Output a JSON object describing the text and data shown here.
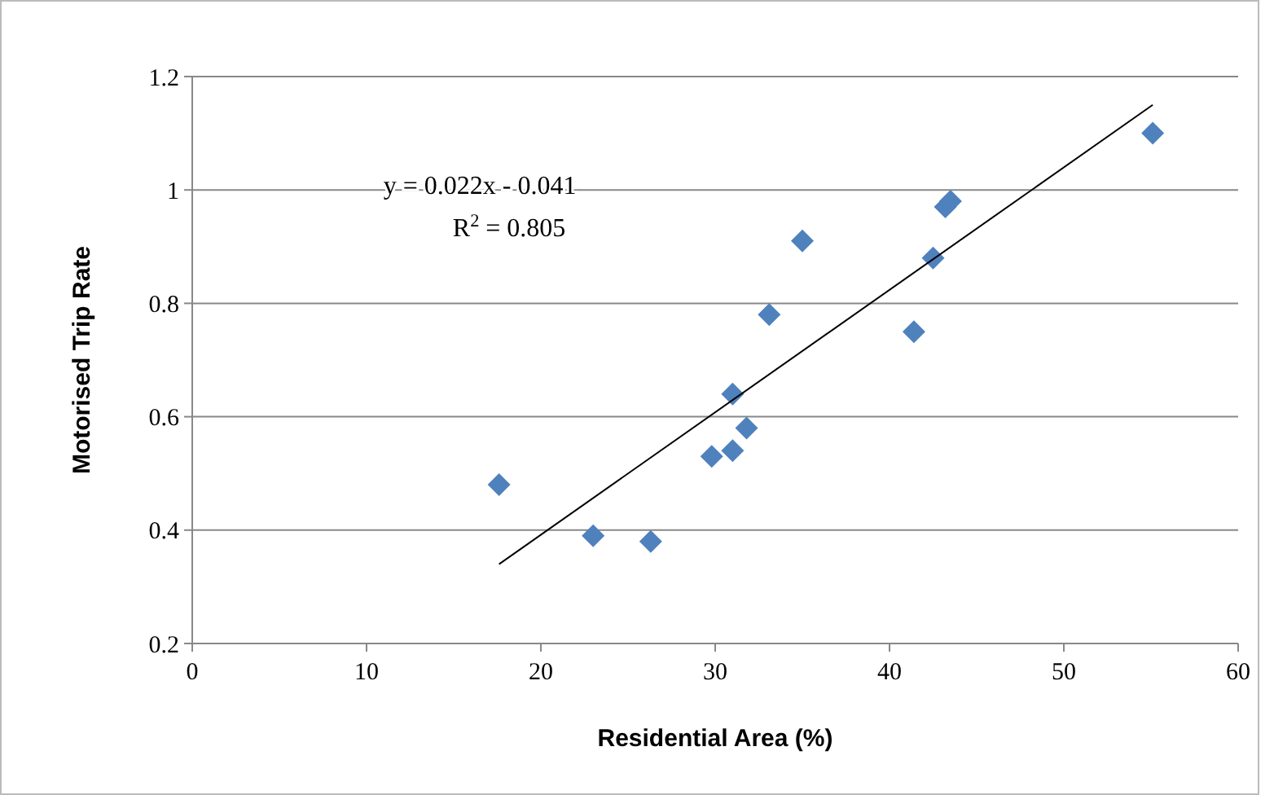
{
  "chart_data": {
    "type": "scatter",
    "xlabel": "Residential Area (%)",
    "ylabel": "Motorised Trip Rate",
    "xlim": [
      0,
      60
    ],
    "xticks": [
      0,
      10,
      20,
      30,
      40,
      50,
      60
    ],
    "ylim": [
      0.2,
      1.2
    ],
    "yticks": [
      0.2,
      0.4,
      0.6,
      0.8,
      1,
      1.2
    ],
    "grid": "y",
    "marker": "diamond",
    "annotations": [
      "y = 0.022x - 0.041",
      "R$^{2}$ = 0.805"
    ],
    "series": [
      {
        "color": "#4f81bd",
        "x": [
          17.6,
          23.0,
          26.3,
          29.8,
          31.0,
          31.0,
          31.8,
          33.1,
          35.0,
          41.4,
          42.5,
          43.2,
          43.5,
          55.1
        ],
        "values": [
          0.48,
          0.39,
          0.38,
          0.53,
          0.54,
          0.64,
          0.58,
          0.78,
          0.91,
          0.75,
          0.88,
          0.97,
          0.98,
          1.1
        ]
      },
      {
        "type": "line",
        "color": "#000000",
        "marker": "none",
        "x": [
          17.6,
          55.1
        ],
        "values": [
          0.34,
          1.15
        ]
      }
    ]
  }
}
